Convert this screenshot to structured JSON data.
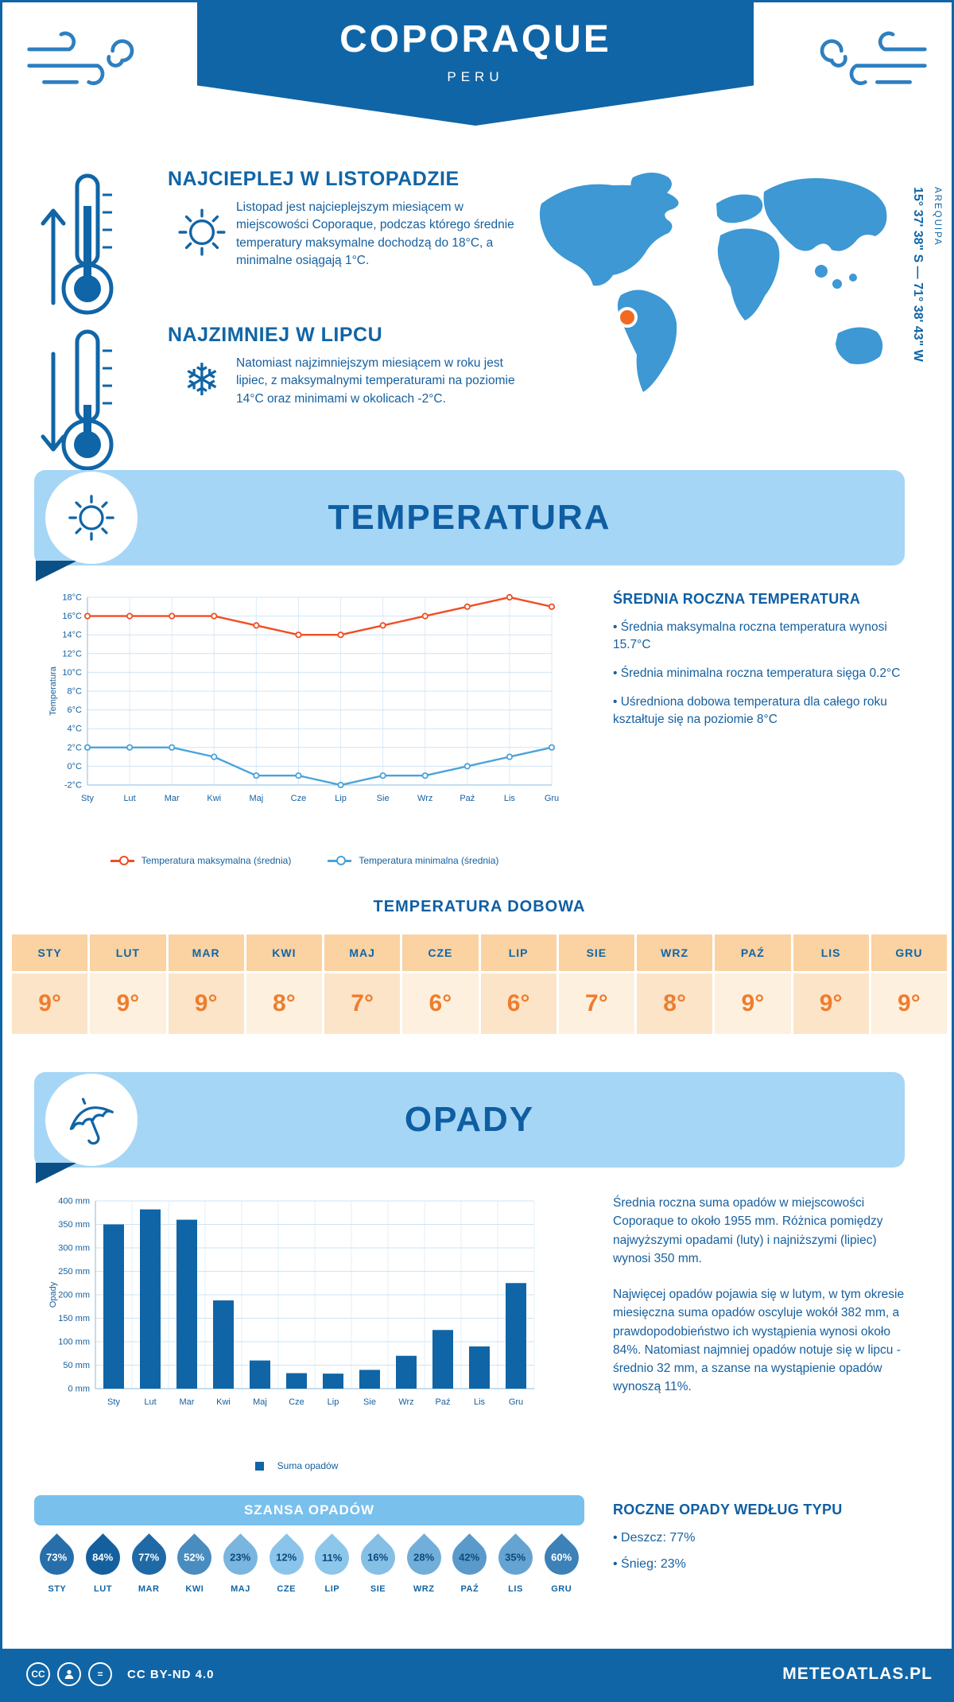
{
  "colors": {
    "primary": "#1065a6",
    "banner": "#a6d6f5",
    "chance_bar": "#79c0ed",
    "max_line": "#f04e23",
    "min_line": "#4ba3d9",
    "bar": "#1065a6",
    "table_value": "#ee7d2e",
    "marker": "#f26a21",
    "map_fill": "#3d98d4"
  },
  "header": {
    "title": "COPORAQUE",
    "subtitle": "PERU"
  },
  "warmest": {
    "heading": "NAJCIEPLEJ W LISTOPADZIE",
    "body": "Listopad jest najcieplejszym miesiącem w miejscowości Coporaque, podczas którego średnie temperatury maksymalne dochodzą do 18°C, a minimalne osiągają 1°C."
  },
  "coldest": {
    "heading": "NAJZIMNIEJ W LIPCU",
    "body": "Natomiast najzimniejszym miesiącem w roku jest lipiec, z maksymalnymi temperaturami na poziomie 14°C oraz minimami w okolicach -2°C."
  },
  "map": {
    "coordinates": "15° 37' 38\" S — 71° 38' 43\" W",
    "region": "AREQUIPA"
  },
  "temperature_section": {
    "title": "TEMPERATURA"
  },
  "annual_temp": {
    "heading": "ŚREDNIA ROCZNA TEMPERATURA",
    "bullets": [
      "Średnia maksymalna roczna temperatura wynosi 15.7°C",
      "Średnia minimalna roczna temperatura sięga 0.2°C",
      "Uśredniona dobowa temperatura dla całego roku kształtuje się na poziomie 8°C"
    ]
  },
  "daily_temp": {
    "heading": "TEMPERATURA DOBOWA",
    "months": [
      "STY",
      "LUT",
      "MAR",
      "KWI",
      "MAJ",
      "CZE",
      "LIP",
      "SIE",
      "WRZ",
      "PAŹ",
      "LIS",
      "GRU"
    ],
    "values": [
      "9°",
      "9°",
      "9°",
      "8°",
      "7°",
      "6°",
      "6°",
      "7°",
      "8°",
      "9°",
      "9°",
      "9°"
    ]
  },
  "precip_section": {
    "title": "OPADY",
    "paragraphs": [
      "Średnia roczna suma opadów w miejscowości Coporaque to około 1955 mm. Różnica pomiędzy najwyższymi opadami (luty) i najniższymi (lipiec) wynosi 350 mm.",
      "Najwięcej opadów pojawia się w lutym, w tym okresie miesięczna suma opadów oscyluje wokół 382 mm, a prawdopodobieństwo ich wystąpienia wynosi około 84%. Natomiast najmniej opadów notuje się w lipcu - średnio 32 mm, a szanse na wystąpienie opadów wynoszą 11%."
    ]
  },
  "rain_chance": {
    "heading": "SZANSA OPADÓW",
    "months": [
      "STY",
      "LUT",
      "MAR",
      "KWI",
      "MAJ",
      "CZE",
      "LIP",
      "SIE",
      "WRZ",
      "PAŹ",
      "LIS",
      "GRU"
    ],
    "values": [
      73,
      84,
      77,
      52,
      23,
      12,
      11,
      16,
      28,
      42,
      35,
      60
    ]
  },
  "precip_type": {
    "heading": "ROCZNE OPADY WEDŁUG TYPU",
    "bullets": [
      "Deszcz: 77%",
      "Śnieg: 23%"
    ]
  },
  "footer": {
    "license": "CC BY-ND 4.0",
    "brand": "METEOATLAS.PL"
  },
  "chart_data": [
    {
      "type": "line",
      "title": "TEMPERATURA",
      "categories": [
        "Sty",
        "Lut",
        "Mar",
        "Kwi",
        "Maj",
        "Cze",
        "Lip",
        "Sie",
        "Wrz",
        "Paź",
        "Lis",
        "Gru"
      ],
      "series": [
        {
          "name": "Temperatura maksymalna (średnia)",
          "color": "#f04e23",
          "values": [
            16,
            16,
            16,
            16,
            15,
            14,
            14,
            15,
            16,
            17,
            18,
            17
          ]
        },
        {
          "name": "Temperatura minimalna (średnia)",
          "color": "#4ba3d9",
          "values": [
            2,
            2,
            2,
            1,
            -1,
            -1,
            -2,
            -1,
            -1,
            0,
            1,
            2
          ]
        }
      ],
      "ylabel": "Temperatura",
      "ylim": [
        -2,
        18
      ],
      "ytick_step": 2,
      "ytick_suffix": "°C",
      "grid": true,
      "legend_position": "bottom"
    },
    {
      "type": "bar",
      "title": "OPADY",
      "categories": [
        "Sty",
        "Lut",
        "Mar",
        "Kwi",
        "Maj",
        "Cze",
        "Lip",
        "Sie",
        "Wrz",
        "Paź",
        "Lis",
        "Gru"
      ],
      "values": [
        350,
        382,
        360,
        188,
        60,
        33,
        32,
        40,
        70,
        125,
        90,
        225
      ],
      "legend": "Suma opadów",
      "ylabel": "Opady",
      "ylim": [
        0,
        400
      ],
      "ytick_step": 50,
      "ytick_suffix": " mm",
      "color": "#1065a6",
      "grid": true,
      "legend_position": "bottom"
    }
  ]
}
